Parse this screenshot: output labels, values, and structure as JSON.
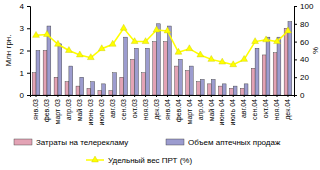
{
  "chart_data": {
    "type": "bar",
    "categories": [
      "янв.03",
      "фев.03",
      "март 03",
      "апр.03",
      "май 03",
      "июнь 03",
      "июль 03",
      "авг.03",
      "сен.03",
      "окт.03",
      "ноя.03",
      "дек.03",
      "янв.04",
      "фев.04",
      "март 04",
      "апр.04",
      "май 04",
      "июнь 04",
      "июль 04",
      "авг.04",
      "сен.04",
      "окт.04",
      "ноя.04",
      "дек.04"
    ],
    "series": [
      {
        "name": "Затраты на телерекламу",
        "color": "#e3a3b5",
        "type": "bar",
        "values": [
          1.0,
          2.0,
          0.8,
          0.6,
          0.4,
          0.3,
          0.2,
          0.2,
          0.8,
          1.6,
          1.0,
          2.4,
          2.4,
          1.3,
          1.1,
          0.6,
          0.5,
          0.4,
          0.3,
          0.3,
          1.2,
          1.8,
          1.9,
          3.0
        ]
      },
      {
        "name": "Объем аптечных продаж",
        "color": "#9c9ccf",
        "type": "bar",
        "values": [
          2.0,
          3.1,
          2.3,
          1.3,
          0.8,
          0.6,
          0.5,
          1.0,
          2.6,
          2.1,
          2.1,
          3.2,
          3.1,
          1.6,
          1.3,
          0.7,
          0.7,
          0.5,
          0.4,
          0.5,
          2.1,
          2.6,
          2.6,
          3.3
        ]
      },
      {
        "name": "Удельный вес ПРТ (%)",
        "color": "#ffff00",
        "type": "line",
        "axis": "y2",
        "marker": "triangle",
        "values": [
          67,
          68,
          57,
          50,
          45,
          42,
          52,
          57,
          75,
          60,
          60,
          73,
          72,
          48,
          52,
          45,
          40,
          37,
          34,
          40,
          60,
          62,
          60,
          72
        ]
      }
    ],
    "y_label": "Млн грн.",
    "y2_label": "%",
    "ylim": [
      0,
      4
    ],
    "yticks": [
      0,
      1,
      2,
      3,
      4
    ],
    "y2lim": [
      0,
      100
    ],
    "y2ticks": [
      0,
      20,
      40,
      60,
      80,
      100
    ],
    "grid": false,
    "legend": "bottom"
  }
}
